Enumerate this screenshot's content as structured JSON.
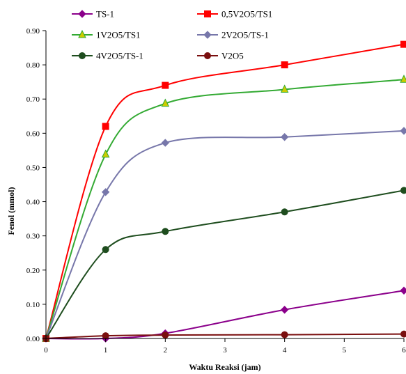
{
  "chart_data": {
    "type": "line",
    "xlabel": "Waktu Reaksi (jam)",
    "ylabel": "Fenol (mmol)",
    "xlim": [
      0,
      6
    ],
    "ylim": [
      0,
      0.9
    ],
    "x_ticks": [
      "0",
      "1",
      "2",
      "3",
      "4",
      "5",
      "6"
    ],
    "y_ticks": [
      "0.00",
      "0.10",
      "0.20",
      "0.30",
      "0.40",
      "0.50",
      "0.60",
      "0.70",
      "0.80",
      "0.90"
    ],
    "grid": false,
    "legend_position": "top",
    "series": [
      {
        "name": "TS-1",
        "color": "#8B008B",
        "marker": "diamond",
        "x": [
          0,
          1,
          2,
          4,
          6
        ],
        "y": [
          0.0,
          0.0,
          0.015,
          0.084,
          0.14
        ]
      },
      {
        "name": "0,5V2O5/TS1",
        "color": "#FF0000",
        "marker": "square",
        "x": [
          0,
          1,
          2,
          4,
          6
        ],
        "y": [
          0.0,
          0.62,
          0.74,
          0.8,
          0.86
        ]
      },
      {
        "name": "1V2O5/TS1",
        "color": "#33AA33",
        "marker": "triangle",
        "marker_fill": "#CCCC00",
        "x": [
          0,
          1,
          2,
          4,
          6
        ],
        "y": [
          0.0,
          0.538,
          0.687,
          0.728,
          0.757
        ]
      },
      {
        "name": "2V2O5/TS-1",
        "color": "#7777AA",
        "marker": "diamond",
        "x": [
          0,
          1,
          2,
          4,
          6
        ],
        "y": [
          0.0,
          0.428,
          0.572,
          0.589,
          0.607
        ]
      },
      {
        "name": "4V2O5/TS-1",
        "color": "#1E4D1E",
        "marker": "circle",
        "x": [
          0,
          1,
          2,
          4,
          6
        ],
        "y": [
          0.0,
          0.26,
          0.313,
          0.37,
          0.433
        ]
      },
      {
        "name": "V2O5",
        "color": "#7A0F0F",
        "marker": "circle",
        "x": [
          0,
          1,
          2,
          4,
          6
        ],
        "y": [
          0.0,
          0.008,
          0.01,
          0.011,
          0.013
        ]
      }
    ]
  }
}
